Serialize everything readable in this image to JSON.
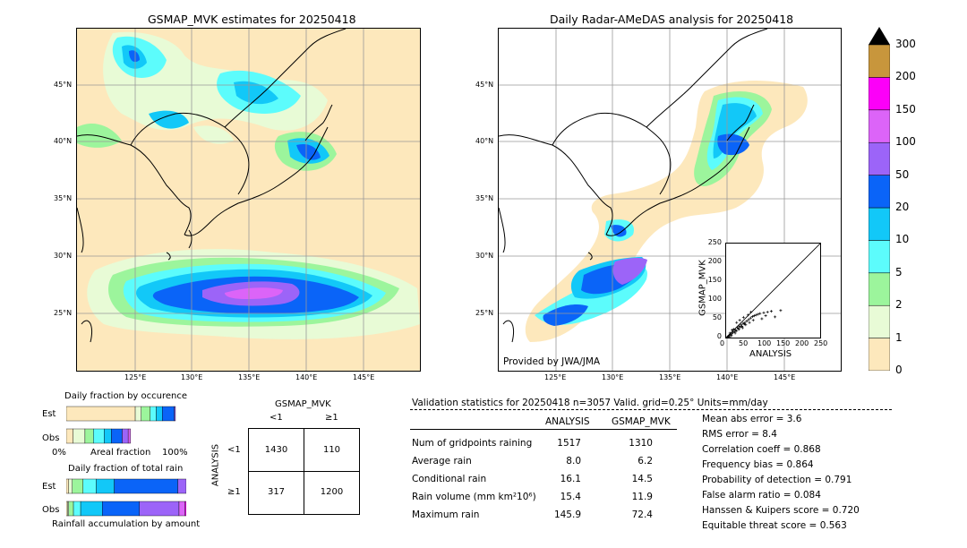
{
  "left_map": {
    "title": "GSMAP_MVK estimates for 20250418",
    "lat_ticks": [
      "45°N",
      "40°N",
      "35°N",
      "30°N",
      "25°N"
    ],
    "lon_ticks": [
      "125°E",
      "130°E",
      "135°E",
      "140°E",
      "145°E"
    ]
  },
  "right_map": {
    "title": "Daily Radar-AMeDAS analysis for 20250418",
    "credit": "Provided by JWA/JMA",
    "lat_ticks": [
      "45°N",
      "40°N",
      "35°N",
      "30°N",
      "25°N"
    ],
    "lon_ticks": [
      "125°E",
      "130°E",
      "135°E",
      "140°E",
      "145°E"
    ]
  },
  "colorbar": {
    "levels": [
      "0",
      "1",
      "2",
      "5",
      "10",
      "20",
      "50",
      "100",
      "150",
      "200",
      "300"
    ],
    "colors": [
      "#fde8bc",
      "#e8fbd6",
      "#9cf59c",
      "#5cfcfc",
      "#12c8f8",
      "#0a64f8",
      "#9c64f8",
      "#dc64f8",
      "#fc00f8",
      "#c8963c"
    ]
  },
  "scatter": {
    "xlabel": "ANALYSIS",
    "ylabel": "GSMAP_MVK",
    "ticks": [
      "0",
      "50",
      "100",
      "150",
      "200",
      "250"
    ]
  },
  "fraction_occurrence": {
    "title": "Daily fraction by occurence",
    "rows": [
      "Est",
      "Obs"
    ],
    "axis_left": "0%",
    "axis_mid": "Areal fraction",
    "axis_right": "100%"
  },
  "fraction_rain": {
    "title": "Daily fraction of total rain",
    "rows": [
      "Est",
      "Obs"
    ],
    "xlabel": "Rainfall accumulation by amount"
  },
  "contingency": {
    "col_title": "GSMAP_MVK",
    "col_lt": "<1",
    "col_ge": "≥1",
    "row_title": "ANALYSIS",
    "row_lt": "<1",
    "row_ge": "≥1",
    "a": "1430",
    "b": "110",
    "c": "317",
    "d": "1200"
  },
  "validation": {
    "header": "Validation statistics for 20250418  n=3057 Valid. grid=0.25° Units=mm/day",
    "col_analysis": "ANALYSIS",
    "col_gsmap": "GSMAP_MVK",
    "rows": [
      {
        "label": "Num of gridpoints raining",
        "analysis": "1517",
        "gsmap": "1310"
      },
      {
        "label": "Average rain",
        "analysis": "8.0",
        "gsmap": "6.2"
      },
      {
        "label": "Conditional rain",
        "analysis": "16.1",
        "gsmap": "14.5"
      },
      {
        "label": "Rain volume (mm km²10⁶)",
        "analysis": "15.4",
        "gsmap": "11.9"
      },
      {
        "label": "Maximum rain",
        "analysis": "145.9",
        "gsmap": "72.4"
      }
    ],
    "scores": [
      "Mean abs error =    3.6",
      "RMS error =    8.4",
      "Correlation coeff =  0.868",
      "Frequency bias =  0.864",
      "Probability of detection =  0.791",
      "False alarm ratio =  0.084",
      "Hanssen & Kuipers score =  0.720",
      "Equitable threat score =  0.563"
    ]
  },
  "chart_data": [
    {
      "type": "scatter",
      "xlabel": "ANALYSIS",
      "ylabel": "GSMAP_MVK",
      "xlim": [
        0,
        250
      ],
      "ylim": [
        0,
        250
      ],
      "points": [
        [
          5,
          3
        ],
        [
          8,
          6
        ],
        [
          10,
          12
        ],
        [
          12,
          8
        ],
        [
          15,
          10
        ],
        [
          18,
          14
        ],
        [
          20,
          22
        ],
        [
          22,
          16
        ],
        [
          25,
          20
        ],
        [
          28,
          18
        ],
        [
          30,
          26
        ],
        [
          32,
          24
        ],
        [
          35,
          30
        ],
        [
          38,
          28
        ],
        [
          40,
          34
        ],
        [
          42,
          30
        ],
        [
          45,
          38
        ],
        [
          48,
          36
        ],
        [
          50,
          40
        ],
        [
          55,
          44
        ],
        [
          60,
          48
        ],
        [
          65,
          52
        ],
        [
          70,
          56
        ],
        [
          75,
          58
        ],
        [
          80,
          60
        ],
        [
          85,
          62
        ],
        [
          90,
          64
        ],
        [
          100,
          66
        ],
        [
          110,
          68
        ],
        [
          120,
          70
        ],
        [
          3,
          1
        ],
        [
          6,
          4
        ],
        [
          9,
          2
        ],
        [
          14,
          5
        ],
        [
          16,
          20
        ],
        [
          24,
          12
        ],
        [
          34,
          22
        ],
        [
          44,
          26
        ],
        [
          52,
          34
        ],
        [
          62,
          40
        ],
        [
          72,
          46
        ],
        [
          28,
          40
        ],
        [
          36,
          46
        ],
        [
          46,
          54
        ],
        [
          58,
          60
        ],
        [
          66,
          68
        ],
        [
          95,
          50
        ],
        [
          105,
          58
        ],
        [
          130,
          55
        ],
        [
          145,
          72
        ]
      ]
    },
    {
      "type": "bar",
      "title": "Daily fraction by occurence",
      "categories": [
        "Est",
        "Obs"
      ],
      "series": [
        {
          "values": [
            0.575,
            0.057
          ]
        },
        {
          "values": [
            0.05,
            0.099
          ]
        },
        {
          "values": [
            0.075,
            0.07
          ]
        },
        {
          "values": [
            0.05,
            0.09
          ]
        },
        {
          "values": [
            0.05,
            0.06
          ]
        },
        {
          "values": [
            0.1,
            0.09
          ]
        },
        {
          "values": [
            0.01,
            0.05
          ]
        },
        {
          "values": [
            0,
            0.02
          ]
        },
        {
          "values": [
            0,
            0
          ]
        },
        {
          "values": [
            0,
            0
          ]
        }
      ]
    },
    {
      "type": "bar",
      "title": "Daily fraction of total rain",
      "xlabel": "Rainfall accumulation by amount",
      "categories": [
        "Est",
        "Obs"
      ],
      "series": [
        {
          "values": [
            0.02,
            0.01
          ]
        },
        {
          "values": [
            0.03,
            0.01
          ]
        },
        {
          "values": [
            0.09,
            0.04
          ]
        },
        {
          "values": [
            0.11,
            0.06
          ]
        },
        {
          "values": [
            0.15,
            0.18
          ]
        },
        {
          "values": [
            0.53,
            0.31
          ]
        },
        {
          "values": [
            0.07,
            0.33
          ]
        },
        {
          "values": [
            0,
            0.05
          ]
        },
        {
          "values": [
            0,
            0.01
          ]
        },
        {
          "values": [
            0,
            0
          ]
        }
      ]
    }
  ]
}
